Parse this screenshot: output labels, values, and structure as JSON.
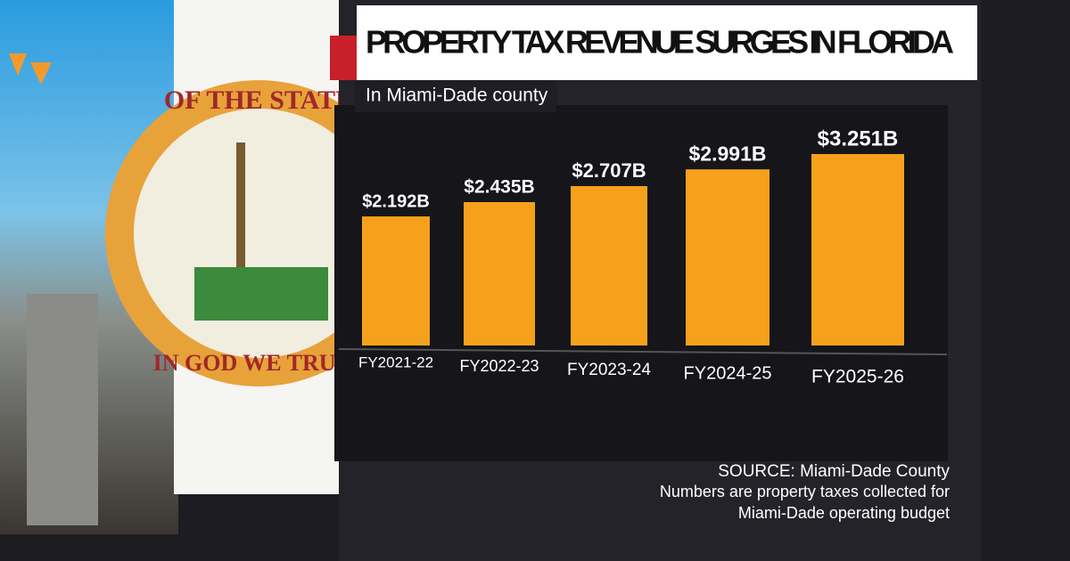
{
  "chart_data": {
    "type": "bar",
    "title": "PROPERTY TAX REVENUE SURGES IN FLORIDA",
    "subtitle": "In Miami-Dade county",
    "categories": [
      "FY2021-22",
      "FY2022-23",
      "FY2023-24",
      "FY2024-25",
      "FY2025-26"
    ],
    "values": [
      2.192,
      2.435,
      2.707,
      2.991,
      3.251
    ],
    "value_labels": [
      "$2.192B",
      "$2.435B",
      "$2.707B",
      "$2.991B",
      "$3.251B"
    ],
    "color": "#f6a11c",
    "source": "SOURCE: Miami-Dade County",
    "note": [
      "Numbers are property taxes collected for",
      "Miami-Dade operating budget"
    ]
  },
  "seal": {
    "top": "OF THE STATE",
    "motto": "IN GOD WE TRUST"
  }
}
